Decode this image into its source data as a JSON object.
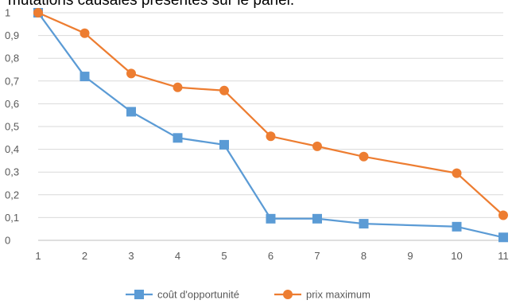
{
  "caption": "mutations causales présentes sur le panel.",
  "chart_data": {
    "type": "line",
    "x": [
      1,
      2,
      3,
      4,
      5,
      6,
      7,
      8,
      9,
      10,
      11
    ],
    "x_ticks": [
      "1",
      "2",
      "3",
      "4",
      "5",
      "6",
      "7",
      "8",
      "9",
      "10",
      "11"
    ],
    "ylim": [
      0,
      1
    ],
    "y_ticks": [
      "0",
      "0,1",
      "0,2",
      "0,3",
      "0,4",
      "0,5",
      "0,6",
      "0,7",
      "0,8",
      "0,9",
      "1"
    ],
    "grid": true,
    "legend_position": "bottom",
    "series": [
      {
        "name": "coût d'opportunité",
        "color": "#5B9BD5",
        "marker": "square",
        "points": [
          [
            1,
            1.0
          ],
          [
            2,
            0.72
          ],
          [
            3,
            0.565
          ],
          [
            4,
            0.45
          ],
          [
            5,
            0.42
          ],
          [
            6,
            0.095
          ],
          [
            7,
            0.095
          ],
          [
            8,
            0.073
          ],
          [
            10,
            0.06
          ],
          [
            11,
            0.013
          ]
        ]
      },
      {
        "name": "prix maximum",
        "color": "#ED7D31",
        "marker": "circle",
        "points": [
          [
            1,
            1.0
          ],
          [
            2,
            0.91
          ],
          [
            3,
            0.733
          ],
          [
            4,
            0.672
          ],
          [
            5,
            0.658
          ],
          [
            6,
            0.457
          ],
          [
            7,
            0.413
          ],
          [
            8,
            0.368
          ],
          [
            10,
            0.295
          ],
          [
            11,
            0.11
          ]
        ]
      }
    ]
  }
}
